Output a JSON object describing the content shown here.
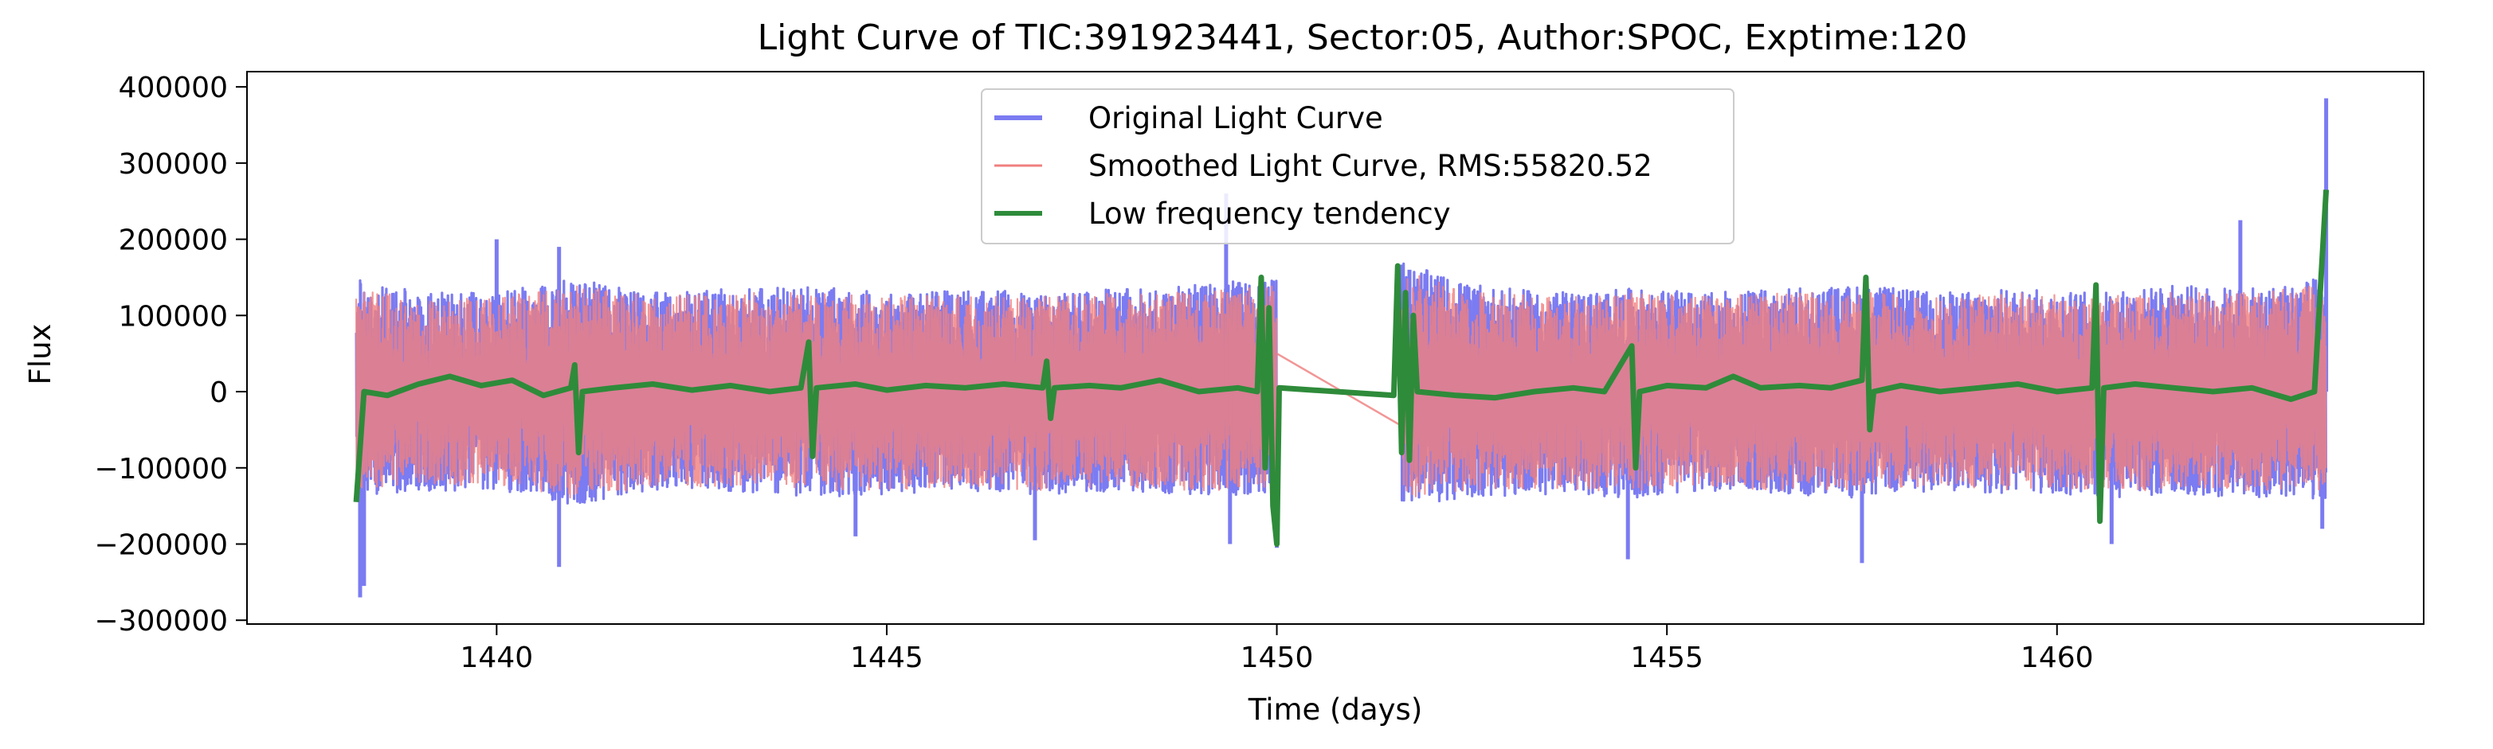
{
  "chart_data": {
    "type": "line",
    "title": "Light Curve of TIC:391923441, Sector:05, Author:SPOC, Exptime:120",
    "xlabel": "Time (days)",
    "ylabel": "Flux",
    "xlim": [
      1436.8,
      1464.7
    ],
    "ylim": [
      -305000,
      420000
    ],
    "xticks": [
      1440,
      1445,
      1450,
      1455,
      1460
    ],
    "yticks": [
      -300000,
      -200000,
      -100000,
      0,
      100000,
      200000,
      300000,
      400000
    ],
    "xtick_labels": [
      "1440",
      "1445",
      "1450",
      "1455",
      "1460"
    ],
    "ytick_labels": [
      "−300000",
      "−200000",
      "−100000",
      "0",
      "100000",
      "200000",
      "300000",
      "400000"
    ],
    "grid": false,
    "legend_position": "top-center",
    "gap": [
      1450.0,
      1451.6
    ],
    "segments": [
      [
        1438.2,
        1450.0
      ],
      [
        1451.6,
        1463.45
      ]
    ],
    "series": [
      {
        "name": "Original Light Curve",
        "color": "#7b7bf2",
        "envelope_upper": [
          [
            1438.2,
            150000
          ],
          [
            1439.0,
            130000
          ],
          [
            1440.0,
            130000
          ],
          [
            1441.0,
            150000
          ],
          [
            1442.0,
            130000
          ],
          [
            1443.0,
            135000
          ],
          [
            1444.0,
            140000
          ],
          [
            1445.0,
            130000
          ],
          [
            1446.0,
            135000
          ],
          [
            1447.0,
            130000
          ],
          [
            1448.0,
            135000
          ],
          [
            1449.0,
            140000
          ],
          [
            1449.9,
            150000
          ],
          [
            1451.6,
            170000
          ],
          [
            1452.5,
            140000
          ],
          [
            1453.5,
            130000
          ],
          [
            1454.5,
            135000
          ],
          [
            1455.5,
            130000
          ],
          [
            1456.5,
            135000
          ],
          [
            1457.5,
            140000
          ],
          [
            1458.5,
            130000
          ],
          [
            1459.5,
            135000
          ],
          [
            1460.5,
            130000
          ],
          [
            1461.5,
            140000
          ],
          [
            1462.5,
            135000
          ],
          [
            1463.4,
            150000
          ]
        ],
        "envelope_lower": [
          [
            1438.2,
            -140000
          ],
          [
            1439.0,
            -130000
          ],
          [
            1440.0,
            -130000
          ],
          [
            1441.0,
            -150000
          ],
          [
            1442.0,
            -130000
          ],
          [
            1443.0,
            -130000
          ],
          [
            1444.0,
            -140000
          ],
          [
            1445.0,
            -135000
          ],
          [
            1446.0,
            -130000
          ],
          [
            1447.0,
            -135000
          ],
          [
            1448.0,
            -130000
          ],
          [
            1449.0,
            -135000
          ],
          [
            1449.9,
            -140000
          ],
          [
            1451.6,
            -150000
          ],
          [
            1452.5,
            -140000
          ],
          [
            1453.5,
            -135000
          ],
          [
            1454.5,
            -140000
          ],
          [
            1455.5,
            -130000
          ],
          [
            1456.5,
            -135000
          ],
          [
            1457.5,
            -140000
          ],
          [
            1458.5,
            -130000
          ],
          [
            1459.5,
            -135000
          ],
          [
            1460.5,
            -140000
          ],
          [
            1461.5,
            -135000
          ],
          [
            1462.5,
            -140000
          ],
          [
            1463.4,
            -140000
          ]
        ],
        "extremes": [
          [
            1438.25,
            -270000
          ],
          [
            1438.3,
            -255000
          ],
          [
            1440.0,
            200000
          ],
          [
            1440.8,
            190000
          ],
          [
            1440.8,
            -230000
          ],
          [
            1444.6,
            -190000
          ],
          [
            1446.9,
            -195000
          ],
          [
            1449.35,
            260000
          ],
          [
            1449.4,
            -200000
          ],
          [
            1450.0,
            -205000
          ],
          [
            1451.7,
            160000
          ],
          [
            1454.5,
            -220000
          ],
          [
            1457.5,
            -225000
          ],
          [
            1460.7,
            -200000
          ],
          [
            1462.35,
            225000
          ],
          [
            1463.45,
            385000
          ],
          [
            1463.4,
            -180000
          ]
        ]
      },
      {
        "name": "Smoothed Light Curve, RMS:55820.52",
        "color": "#f08080",
        "envelope_upper": [
          [
            1438.2,
            140000
          ],
          [
            1439.0,
            120000
          ],
          [
            1440.0,
            125000
          ],
          [
            1441.0,
            140000
          ],
          [
            1442.0,
            125000
          ],
          [
            1443.0,
            130000
          ],
          [
            1444.0,
            130000
          ],
          [
            1445.0,
            125000
          ],
          [
            1446.0,
            130000
          ],
          [
            1447.0,
            125000
          ],
          [
            1448.0,
            130000
          ],
          [
            1449.0,
            130000
          ],
          [
            1449.9,
            140000
          ],
          [
            1451.6,
            160000
          ],
          [
            1452.5,
            130000
          ],
          [
            1453.5,
            125000
          ],
          [
            1454.5,
            130000
          ],
          [
            1455.5,
            125000
          ],
          [
            1456.5,
            130000
          ],
          [
            1457.5,
            130000
          ],
          [
            1458.5,
            125000
          ],
          [
            1459.5,
            130000
          ],
          [
            1460.5,
            125000
          ],
          [
            1461.5,
            130000
          ],
          [
            1462.5,
            130000
          ],
          [
            1463.4,
            140000
          ]
        ],
        "envelope_lower": [
          [
            1438.2,
            -130000
          ],
          [
            1439.0,
            -120000
          ],
          [
            1440.0,
            -125000
          ],
          [
            1441.0,
            -140000
          ],
          [
            1442.0,
            -125000
          ],
          [
            1443.0,
            -125000
          ],
          [
            1444.0,
            -130000
          ],
          [
            1445.0,
            -130000
          ],
          [
            1446.0,
            -125000
          ],
          [
            1447.0,
            -130000
          ],
          [
            1448.0,
            -125000
          ],
          [
            1449.0,
            -130000
          ],
          [
            1449.9,
            -130000
          ],
          [
            1451.6,
            -140000
          ],
          [
            1452.5,
            -130000
          ],
          [
            1453.5,
            -130000
          ],
          [
            1454.5,
            -130000
          ],
          [
            1455.5,
            -125000
          ],
          [
            1456.5,
            -130000
          ],
          [
            1457.5,
            -130000
          ],
          [
            1458.5,
            -125000
          ],
          [
            1459.5,
            -130000
          ],
          [
            1460.5,
            -130000
          ],
          [
            1461.5,
            -130000
          ],
          [
            1462.5,
            -130000
          ],
          [
            1463.4,
            -130000
          ]
        ],
        "bridge": [
          [
            1450.0,
            50000
          ],
          [
            1451.6,
            -45000
          ]
        ]
      },
      {
        "name": "Low frequency tendency",
        "color": "#2e8b3a",
        "points": [
          [
            1438.2,
            -145000
          ],
          [
            1438.3,
            0
          ],
          [
            1438.6,
            -5000
          ],
          [
            1439.0,
            10000
          ],
          [
            1439.4,
            20000
          ],
          [
            1439.8,
            8000
          ],
          [
            1440.2,
            15000
          ],
          [
            1440.6,
            -5000
          ],
          [
            1440.95,
            5000
          ],
          [
            1441.0,
            35000
          ],
          [
            1441.05,
            -80000
          ],
          [
            1441.1,
            0
          ],
          [
            1441.5,
            5000
          ],
          [
            1442.0,
            10000
          ],
          [
            1442.5,
            2000
          ],
          [
            1443.0,
            8000
          ],
          [
            1443.5,
            0
          ],
          [
            1443.9,
            5000
          ],
          [
            1444.0,
            65000
          ],
          [
            1444.05,
            -85000
          ],
          [
            1444.1,
            5000
          ],
          [
            1444.6,
            10000
          ],
          [
            1445.0,
            2000
          ],
          [
            1445.5,
            8000
          ],
          [
            1446.0,
            5000
          ],
          [
            1446.5,
            10000
          ],
          [
            1447.0,
            5000
          ],
          [
            1447.05,
            40000
          ],
          [
            1447.1,
            -35000
          ],
          [
            1447.15,
            5000
          ],
          [
            1447.6,
            8000
          ],
          [
            1448.0,
            5000
          ],
          [
            1448.5,
            15000
          ],
          [
            1449.0,
            0
          ],
          [
            1449.5,
            5000
          ],
          [
            1449.75,
            0
          ],
          [
            1449.8,
            150000
          ],
          [
            1449.85,
            -100000
          ],
          [
            1449.9,
            110000
          ],
          [
            1449.95,
            -150000
          ],
          [
            1450.0,
            -200000
          ],
          [
            1450.03,
            5000
          ],
          [
            1451.5,
            -5000
          ],
          [
            1451.55,
            165000
          ],
          [
            1451.6,
            -80000
          ],
          [
            1451.65,
            130000
          ],
          [
            1451.7,
            -90000
          ],
          [
            1451.75,
            100000
          ],
          [
            1451.8,
            0
          ],
          [
            1452.3,
            -5000
          ],
          [
            1452.8,
            -8000
          ],
          [
            1453.3,
            0
          ],
          [
            1453.8,
            5000
          ],
          [
            1454.2,
            0
          ],
          [
            1454.55,
            60000
          ],
          [
            1454.6,
            -100000
          ],
          [
            1454.65,
            0
          ],
          [
            1455.0,
            8000
          ],
          [
            1455.5,
            5000
          ],
          [
            1455.85,
            20000
          ],
          [
            1456.2,
            5000
          ],
          [
            1456.7,
            8000
          ],
          [
            1457.1,
            5000
          ],
          [
            1457.5,
            15000
          ],
          [
            1457.55,
            150000
          ],
          [
            1457.6,
            -50000
          ],
          [
            1457.65,
            0
          ],
          [
            1458.0,
            8000
          ],
          [
            1458.5,
            0
          ],
          [
            1459.0,
            5000
          ],
          [
            1459.5,
            10000
          ],
          [
            1460.0,
            0
          ],
          [
            1460.45,
            5000
          ],
          [
            1460.5,
            140000
          ],
          [
            1460.55,
            -170000
          ],
          [
            1460.6,
            5000
          ],
          [
            1461.0,
            10000
          ],
          [
            1461.5,
            5000
          ],
          [
            1462.0,
            0
          ],
          [
            1462.5,
            5000
          ],
          [
            1463.0,
            -10000
          ],
          [
            1463.3,
            0
          ],
          [
            1463.45,
            265000
          ]
        ]
      }
    ]
  }
}
